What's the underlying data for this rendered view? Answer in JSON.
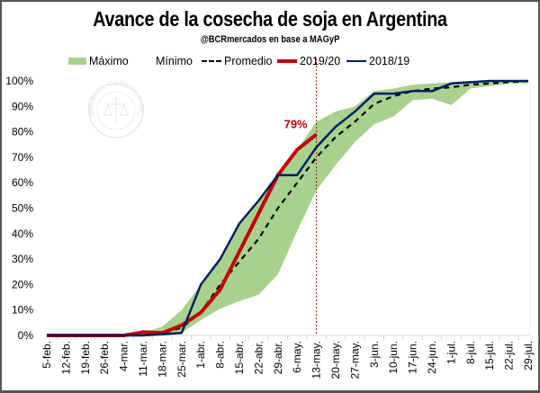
{
  "chart_data": {
    "type": "line",
    "title": "Avance de la cosecha de soja en Argentina",
    "subtitle": "@BCRmercados en base a MAGyP",
    "xlabel": "",
    "ylabel": "",
    "ylim": [
      0,
      100
    ],
    "y_ticks": [
      "0%",
      "10%",
      "20%",
      "30%",
      "40%",
      "50%",
      "60%",
      "70%",
      "80%",
      "90%",
      "100%"
    ],
    "grid": false,
    "legend_position": "top",
    "categories": [
      "5-feb.",
      "12-feb.",
      "19-feb.",
      "26-feb.",
      "4-mar.",
      "11-mar.",
      "18-mar.",
      "25-mar.",
      "1-abr.",
      "8-abr.",
      "15-abr.",
      "22-abr.",
      "29-abr.",
      "6-may.",
      "13-may.",
      "20-may.",
      "27-may.",
      "3-jun.",
      "10-jun.",
      "17-jun.",
      "24-jun.",
      "1-jul.",
      "8-jul.",
      "15-jul.",
      "22-jul.",
      "29-jul."
    ],
    "band": {
      "name_upper": "Máximo",
      "name_lower": "Mínimo",
      "color": "#a9d18e",
      "upper": [
        0,
        0,
        0,
        0,
        0,
        1,
        3.5,
        10,
        20,
        30,
        44,
        53,
        63,
        73,
        84,
        88,
        90,
        96,
        97,
        98.5,
        99,
        99.5,
        100,
        100,
        100,
        100
      ],
      "lower": [
        0,
        0,
        0,
        0,
        0,
        0,
        0,
        1,
        6,
        10.5,
        13.5,
        16,
        24,
        41,
        57,
        67,
        76,
        83,
        86,
        92.5,
        93,
        90.5,
        97,
        98,
        99,
        99
      ]
    },
    "series": [
      {
        "name": "Promedio",
        "color": "#000000",
        "style": "dashed",
        "values": [
          0,
          0,
          0,
          0,
          0,
          0.5,
          1,
          3,
          9,
          20,
          29,
          38,
          50,
          60,
          70,
          78,
          84,
          91,
          94,
          96,
          97,
          97.5,
          98.5,
          99,
          99.5,
          100
        ]
      },
      {
        "name": "2019/20",
        "color": "#c00000",
        "style": "solid-thick",
        "values": [
          0,
          0,
          0,
          0,
          0,
          1.3,
          1,
          4,
          9,
          18,
          33,
          48,
          63,
          73,
          79,
          null,
          null,
          null,
          null,
          null,
          null,
          null,
          null,
          null,
          null,
          null
        ]
      },
      {
        "name": "2018/19",
        "color": "#002060",
        "style": "solid",
        "values": [
          0,
          0,
          0,
          0,
          0,
          0,
          0.5,
          1,
          20,
          30,
          44,
          53,
          63,
          63,
          74,
          82,
          88,
          95,
          95,
          96,
          96,
          99,
          99.5,
          100,
          100,
          100
        ]
      }
    ],
    "annotations": [
      {
        "text": "79%",
        "series": "2019/20",
        "category": "13-may.",
        "color": "#c00000"
      },
      {
        "type": "vertical-line",
        "category": "13-may.",
        "style": "dotted",
        "color": "#c00000"
      }
    ],
    "legend": [
      "Máximo",
      "Mínimo",
      "Promedio",
      "2019/20",
      "2018/19"
    ],
    "watermark": "BOLSA DE COMERCIO DE ROSARIO"
  }
}
